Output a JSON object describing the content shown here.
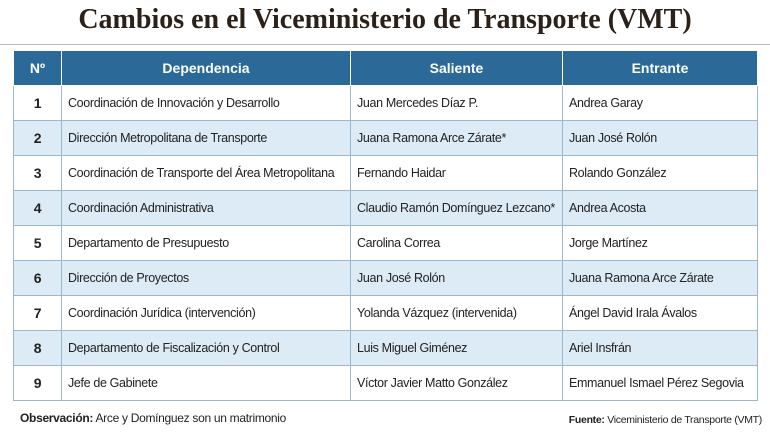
{
  "header": {
    "title": "Cambios en el Viceministerio de Transporte (VMT)"
  },
  "table": {
    "headers": [
      "Nº",
      "Dependencia",
      "Saliente",
      "Entrante"
    ],
    "rows": [
      [
        1,
        "Coordinación de Innovación y Desarrollo",
        "Juan Mercedes Díaz P.",
        "Andrea Garay"
      ],
      [
        2,
        "Dirección Metropolitana de Transporte",
        "Juana Ramona Arce Zárate*",
        "Juan José Rolón"
      ],
      [
        3,
        "Coordinación de Transporte del Área Metropolitana",
        "Fernando Haidar",
        "Rolando González"
      ],
      [
        4,
        "Coordinación Administrativa",
        "Claudio Ramón Domínguez Lezcano*",
        "Andrea Acosta"
      ],
      [
        5,
        "Departamento de Presupuesto",
        "Carolina Correa",
        "Jorge Martínez"
      ],
      [
        6,
        "Dirección de Proyectos",
        "Juan José Rolón",
        "Juana Ramona Arce Zárate"
      ],
      [
        7,
        "Coordinación Jurídica (intervención)",
        "Yolanda Vázquez (intervenida)",
        "Ángel David Irala Ávalos"
      ],
      [
        8,
        "Departamento de Fiscalización y Control",
        "Luis Miguel Giménez",
        "Ariel Insfrán"
      ],
      [
        9,
        "Jefe de Gabinete",
        "Víctor Javier Matto González",
        "Emmanuel Ismael Pérez Segovia"
      ]
    ]
  },
  "footer": {
    "observation_label": "Observación:",
    "observation": "Arce y Domínguez son un matrimonio",
    "source_label": "Fuente:",
    "source": "Viceministerio de Transporte (VMT)"
  }
}
